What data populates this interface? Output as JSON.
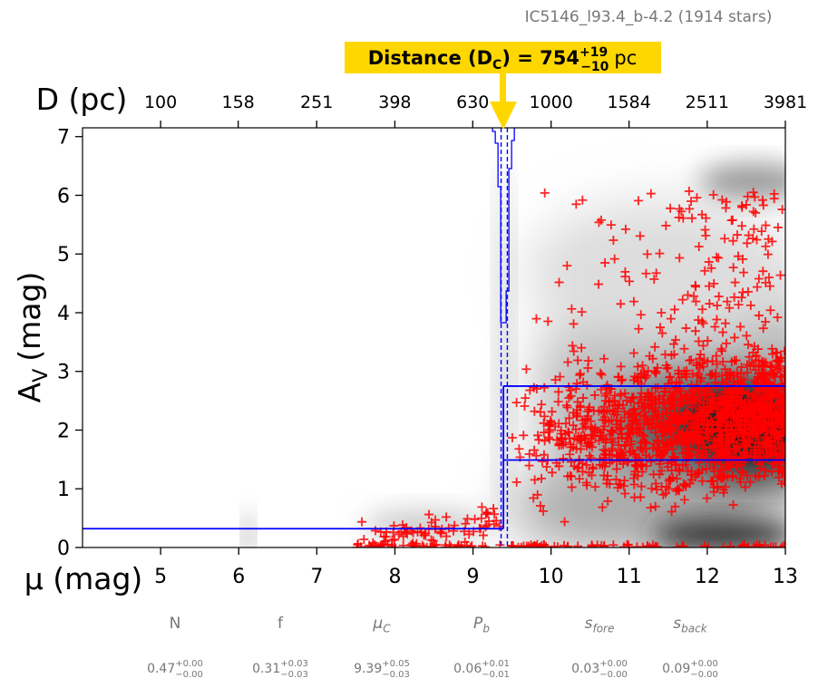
{
  "chart_data": {
    "type": "scatter",
    "title": "IC5146_l93.4_b-4.2 (1914 stars)",
    "distance_label": {
      "prefix": "Distance (D",
      "sub": "C",
      "mid": ") = 754",
      "sup": "+19",
      "sub_err": "−10",
      "unit": "pc"
    },
    "xlabel": "μ (mag)",
    "ylabel": "A",
    "ylabel_sub": "V",
    "ylabel_suffix": "(mag)",
    "top_axis_label": "D (pc)",
    "xlim": [
      4,
      13
    ],
    "ylim": [
      0,
      7.15
    ],
    "x_ticks": [
      "5",
      "6",
      "7",
      "8",
      "9",
      "10",
      "11",
      "12",
      "13"
    ],
    "y_ticks": [
      "0",
      "1",
      "2",
      "3",
      "4",
      "5",
      "6",
      "7"
    ],
    "top_ticks": [
      "100",
      "158",
      "251",
      "398",
      "630",
      "1000",
      "1584",
      "2511",
      "3981"
    ],
    "colors": {
      "points": "#ff0000",
      "model": "#0000ff",
      "highlight": "#ffd700",
      "arrow": "#ffd700"
    },
    "model": {
      "foreground_av": 0.32,
      "mu_cloud": 9.39,
      "mu_cloud_lo": 9.36,
      "mu_cloud_hi": 9.44,
      "background_av_upper": 2.75,
      "background_av_lower": 1.49
    },
    "points_summary": {
      "count": 1914,
      "marker": "+"
    }
  },
  "params": [
    {
      "name": "N",
      "value": "0.47",
      "plus": "+0.00",
      "minus": "−0.00"
    },
    {
      "name": "f",
      "value": "0.31",
      "plus": "+0.03",
      "minus": "−0.03"
    },
    {
      "name": "μ",
      "name_sub": "C",
      "value": "9.39",
      "plus": "+0.05",
      "minus": "−0.03"
    },
    {
      "name": "P",
      "name_sub": "b",
      "value": "0.06",
      "plus": "+0.01",
      "minus": "−0.01"
    },
    {
      "name": "s",
      "name_sub": "fore",
      "value": "0.03",
      "plus": "+0.00",
      "minus": "−0.00"
    },
    {
      "name": "s",
      "name_sub": "back",
      "value": "0.09",
      "plus": "+0.00",
      "minus": "−0.00"
    }
  ]
}
